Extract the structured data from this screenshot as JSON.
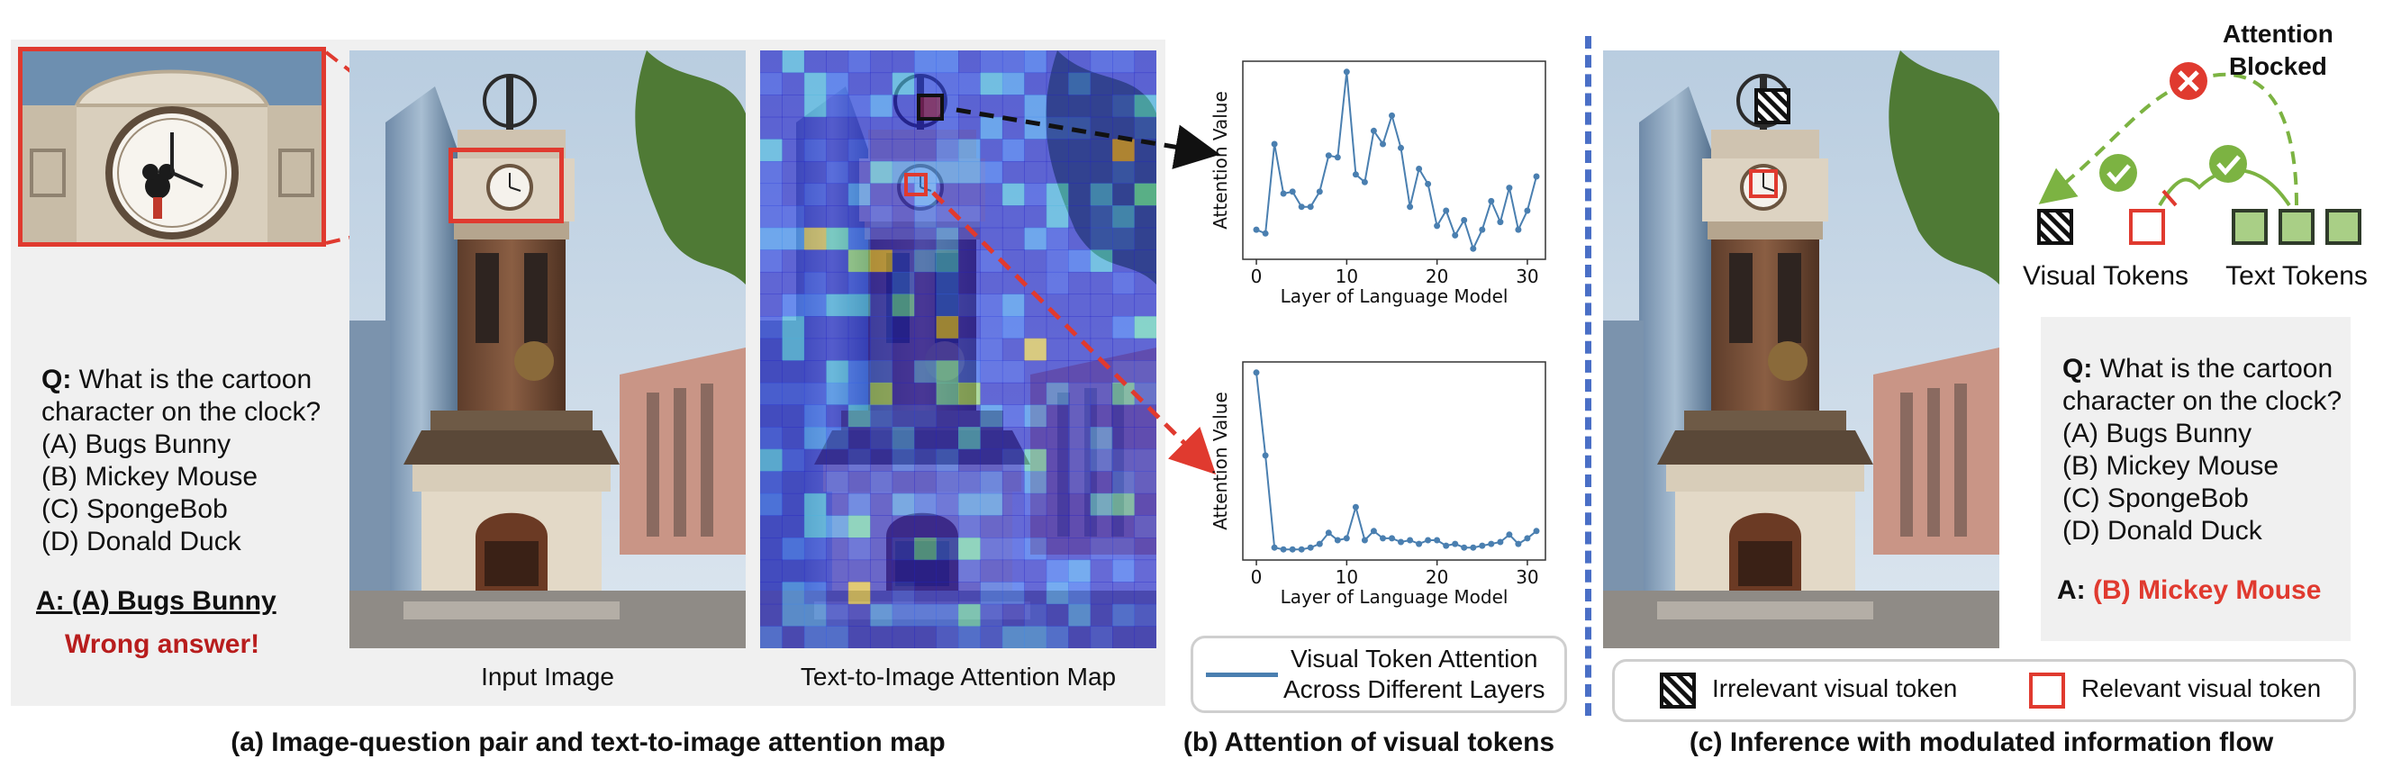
{
  "panel_a": {
    "question_label": "Q:",
    "question_text": "What is the cartoon character on the clock?",
    "question_line1": "What is the cartoon",
    "question_line2": "character on the clock?",
    "options": [
      "(A) Bugs Bunny",
      "(B) Mickey Mouse",
      "(C) SpongeBob",
      "(D) Donald Duck"
    ],
    "answer": "A: (A) Bugs Bunny",
    "verdict": "Wrong answer!",
    "input_image_label": "Input Image",
    "attention_map_label": "Text-to-Image Attention Map",
    "caption": "(a) Image-question pair and text-to-image attention map"
  },
  "panel_b": {
    "caption": "(b) Attention of visual tokens",
    "legend_line1": "Visual Token Attention",
    "legend_line2": "Across Different Layers",
    "line_color": "#4a7fb0"
  },
  "panel_c": {
    "attention_blocked": "Attention Blocked",
    "attention_blocked_line1": "Attention",
    "attention_blocked_line2": "Blocked",
    "visual_tokens": "Visual Tokens",
    "text_tokens": "Text Tokens",
    "question_label": "Q:",
    "question_line1": "What is the cartoon",
    "question_line2": "character on the clock?",
    "options": [
      "(A) Bugs Bunny",
      "(B) Mickey Mouse",
      "(C) SpongeBob",
      "(D) Donald Duck"
    ],
    "answer_label": "A:",
    "answer_value": "(B) Mickey Mouse",
    "legend_irrelevant": "Irrelevant visual token",
    "legend_relevant": "Relevant visual token",
    "caption": "(c) Inference with modulated information flow"
  },
  "colors": {
    "red": "#e03a2f",
    "dark_red": "#b81d1d",
    "divider": "#4a6fc6",
    "green": "#7cb342",
    "text_token_fill": "#a9cf86"
  },
  "chart_data": [
    {
      "type": "line",
      "title": "",
      "xlabel": "Layer of Language Model",
      "ylabel": "Attention Value",
      "xlim": [
        -1.5,
        32
      ],
      "xticks": [
        0,
        10,
        20,
        30
      ],
      "grid": false,
      "series": [
        {
          "x": [
            0,
            1,
            2,
            3,
            4,
            5,
            6,
            7,
            8,
            9,
            10,
            11,
            12,
            13,
            14,
            15,
            16,
            17,
            18,
            19,
            20,
            21,
            22,
            23,
            24,
            25,
            26,
            27,
            28,
            29,
            30,
            31
          ],
          "values": [
            0.17,
            0.15,
            0.62,
            0.36,
            0.37,
            0.29,
            0.29,
            0.37,
            0.56,
            0.55,
            1.0,
            0.46,
            0.42,
            0.69,
            0.62,
            0.77,
            0.6,
            0.29,
            0.49,
            0.41,
            0.19,
            0.27,
            0.14,
            0.22,
            0.07,
            0.17,
            0.32,
            0.21,
            0.39,
            0.17,
            0.27,
            0.45
          ]
        }
      ]
    },
    {
      "type": "line",
      "title": "",
      "xlabel": "Layer of Language Model",
      "ylabel": "Attention Value",
      "xlim": [
        -1.5,
        32
      ],
      "xticks": [
        0,
        10,
        20,
        30
      ],
      "grid": false,
      "series": [
        {
          "x": [
            0,
            1,
            2,
            3,
            4,
            5,
            6,
            7,
            8,
            9,
            10,
            11,
            12,
            13,
            14,
            15,
            16,
            17,
            18,
            19,
            20,
            21,
            22,
            23,
            24,
            25,
            26,
            27,
            28,
            29,
            30,
            31
          ],
          "values": [
            1.0,
            0.55,
            0.05,
            0.04,
            0.04,
            0.04,
            0.05,
            0.07,
            0.13,
            0.09,
            0.1,
            0.27,
            0.09,
            0.14,
            0.1,
            0.1,
            0.08,
            0.09,
            0.07,
            0.09,
            0.09,
            0.06,
            0.07,
            0.05,
            0.05,
            0.06,
            0.07,
            0.08,
            0.12,
            0.07,
            0.1,
            0.14
          ]
        }
      ]
    }
  ]
}
